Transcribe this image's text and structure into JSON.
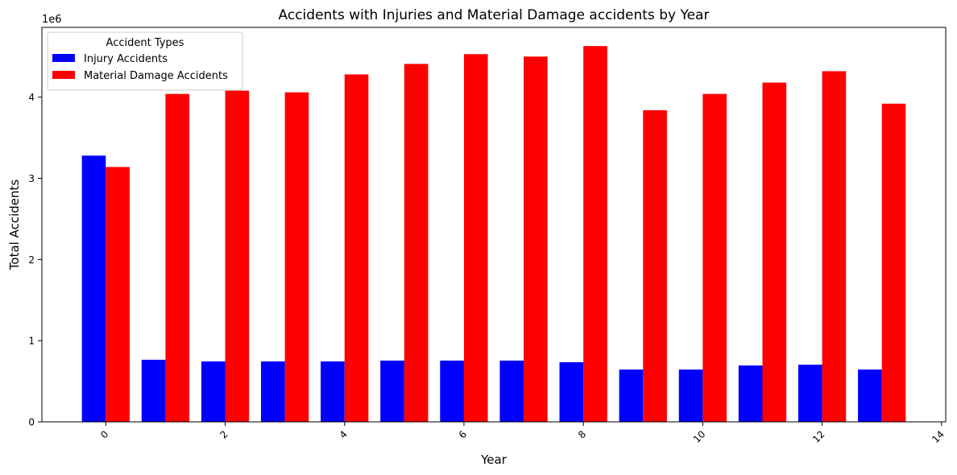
{
  "chart_data": {
    "type": "bar",
    "title": "Accidents with Injuries and Material Damage accidents by Year",
    "xlabel": "Year",
    "ylabel": "Total Accidents",
    "y_offset_label": "1e6",
    "y_scale": 1000000,
    "xlim": [
      -1.07,
      14.07
    ],
    "ylim": [
      0,
      4860000
    ],
    "x_ticks": [
      0,
      2,
      4,
      6,
      8,
      10,
      12,
      14
    ],
    "x_tick_labels": [
      "0",
      "2",
      "4",
      "6",
      "8",
      "10",
      "12",
      "14"
    ],
    "y_ticks": [
      0,
      1000000,
      2000000,
      3000000,
      4000000
    ],
    "y_tick_labels": [
      "0",
      "1",
      "2",
      "3",
      "4"
    ],
    "x": [
      0,
      1,
      2,
      3,
      4,
      5,
      6,
      7,
      8,
      9,
      10,
      11,
      12,
      13
    ],
    "bar_width": 0.4,
    "legend": {
      "title": "Accident Types",
      "placement": "top-left"
    },
    "grid": false,
    "series": [
      {
        "name": "Injury Accidents",
        "color": "#0000ff",
        "values": [
          3280000,
          765000,
          745000,
          745000,
          745000,
          755000,
          755000,
          755000,
          735000,
          645000,
          645000,
          695000,
          705000,
          645000
        ]
      },
      {
        "name": "Material Damage Accidents",
        "color": "#ff0000",
        "values": [
          3140000,
          4040000,
          4080000,
          4060000,
          4280000,
          4410000,
          4530000,
          4500000,
          4630000,
          3840000,
          4040000,
          4180000,
          4320000,
          3920000
        ]
      }
    ]
  }
}
